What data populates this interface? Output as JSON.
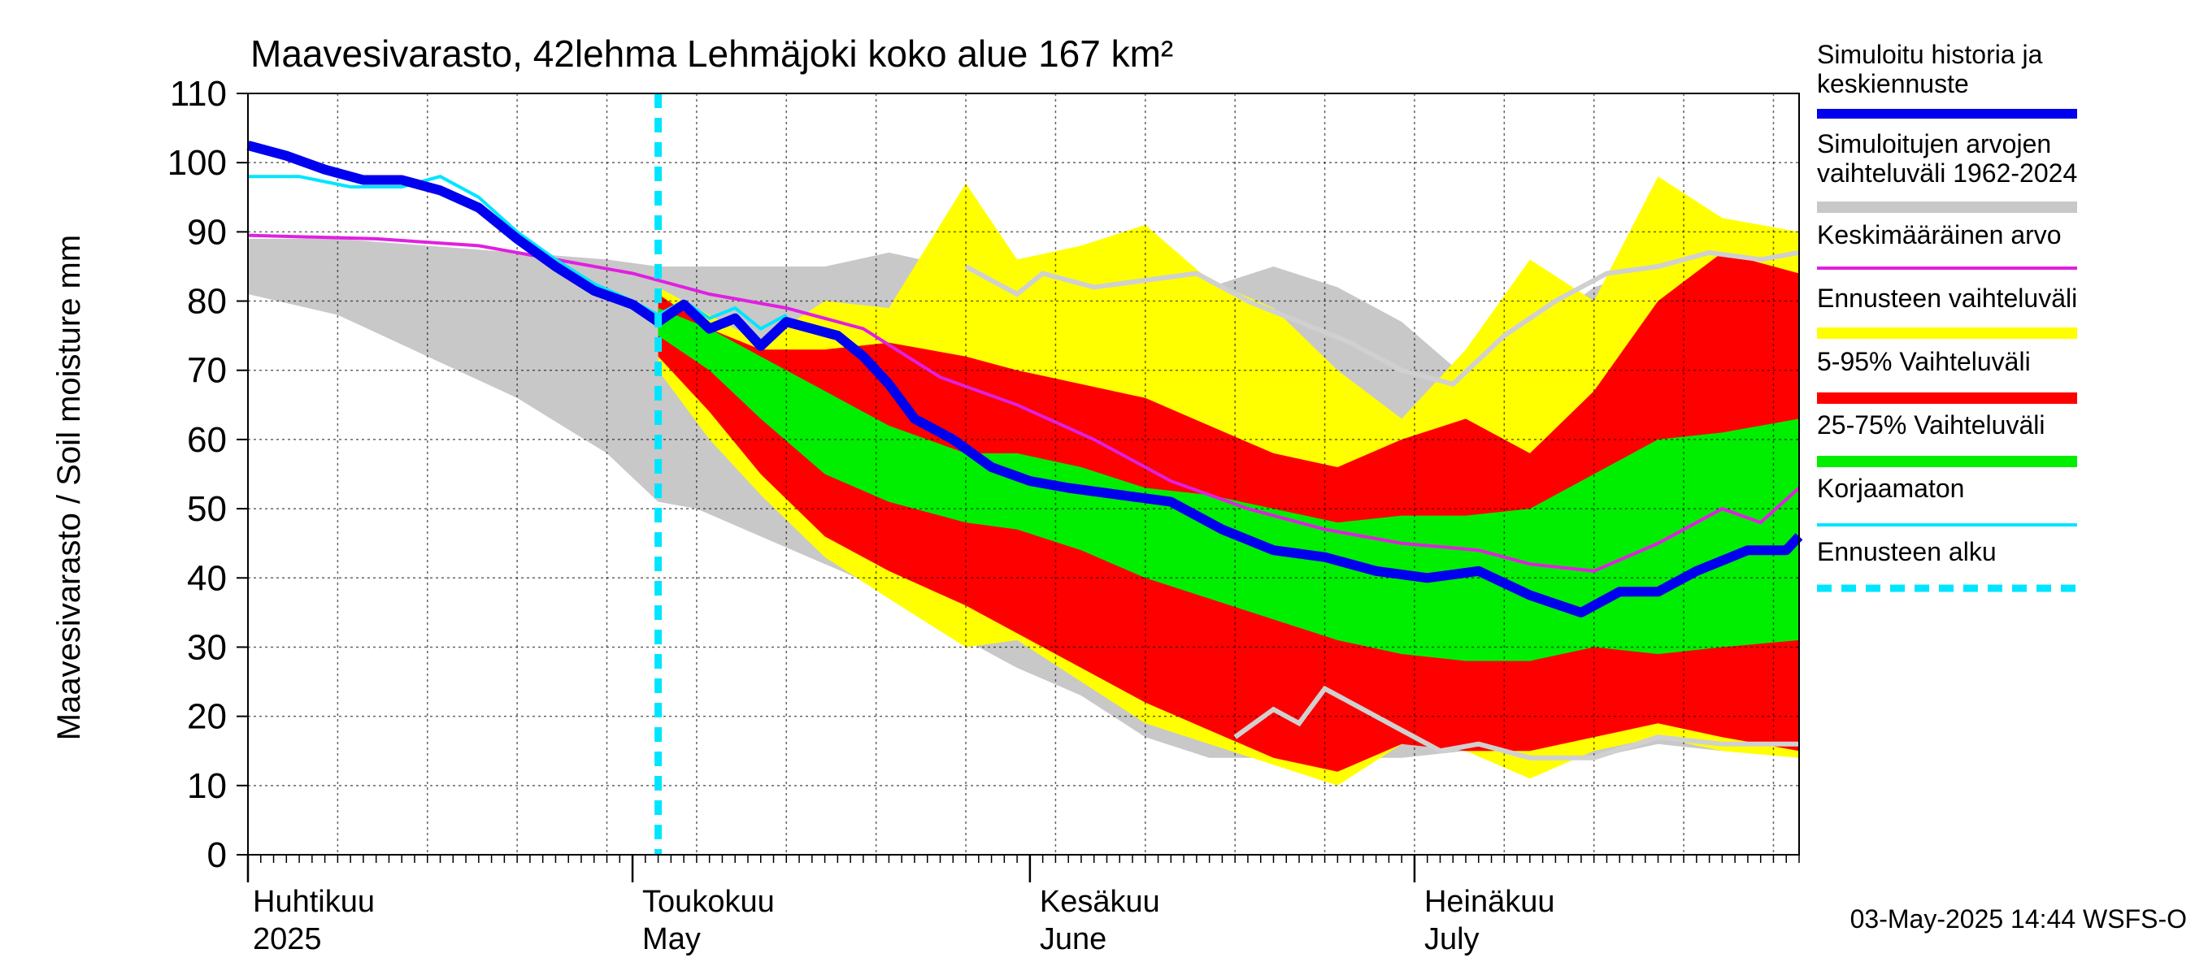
{
  "chart_data": {
    "type": "area",
    "title": "Maavesivarasto, 42lehma Lehmäjoki koko alue 167 km²",
    "ylabel": "Maavesivarasto / Soil moisture   mm",
    "xlabel": "",
    "ylim": [
      0,
      110
    ],
    "yticks": [
      0,
      10,
      20,
      30,
      40,
      50,
      60,
      70,
      80,
      90,
      100,
      110
    ],
    "xlim": [
      "2025-04-01",
      "2025-07-31"
    ],
    "grid": true,
    "legend_position": "right",
    "forecast_start": "2025-05-03",
    "month_labels": [
      {
        "line1": "Huhtikuu",
        "line2": "2025",
        "date": "2025-04-01"
      },
      {
        "line1": "Toukokuu",
        "line2": "May",
        "date": "2025-05-01"
      },
      {
        "line1": "Kesäkuu",
        "line2": "June",
        "date": "2025-06-01"
      },
      {
        "line1": "Heinäkuu",
        "line2": "July",
        "date": "2025-07-01"
      }
    ],
    "footer": "03-May-2025 14:44 WSFS-O",
    "legend": [
      {
        "label": "Simuloitu historia ja keskiennuste",
        "color": "#0000ee",
        "style": "thick"
      },
      {
        "label": "Simuloitujen arvojen vaihteluväli 1962-2024",
        "color": "#c8c8c8",
        "style": "band"
      },
      {
        "label": "Keskimääräinen arvo",
        "color": "#e020e0",
        "style": "thin"
      },
      {
        "label": "Ennusteen vaihteluväli",
        "color": "#ffff00",
        "style": "band"
      },
      {
        "label": "5-95% Vaihteluväli",
        "color": "#ff0000",
        "style": "band"
      },
      {
        "label": "25-75% Vaihteluväli",
        "color": "#00ee00",
        "style": "band"
      },
      {
        "label": "Korjaamaton",
        "color": "#00e5ff",
        "style": "thin"
      },
      {
        "label": "Ennusteen alku",
        "color": "#00e5ff",
        "style": "dashed"
      }
    ],
    "series": {
      "history_range": [
        {
          "d": 0,
          "lo": 81,
          "hi": 89
        },
        {
          "d": 7,
          "lo": 78,
          "hi": 89
        },
        {
          "d": 14,
          "lo": 72,
          "hi": 88
        },
        {
          "d": 21,
          "lo": 66,
          "hi": 87
        },
        {
          "d": 28,
          "lo": 58,
          "hi": 86
        },
        {
          "d": 32,
          "lo": 51,
          "hi": 85
        },
        {
          "d": 35,
          "lo": 50,
          "hi": 85
        },
        {
          "d": 40,
          "lo": 46,
          "hi": 85
        },
        {
          "d": 45,
          "lo": 42,
          "hi": 85
        },
        {
          "d": 50,
          "lo": 38,
          "hi": 87
        },
        {
          "d": 55,
          "lo": 32,
          "hi": 85
        },
        {
          "d": 60,
          "lo": 27,
          "hi": 82
        },
        {
          "d": 65,
          "lo": 23,
          "hi": 84
        },
        {
          "d": 70,
          "lo": 17,
          "hi": 82
        },
        {
          "d": 75,
          "lo": 14,
          "hi": 82
        },
        {
          "d": 80,
          "lo": 14,
          "hi": 85
        },
        {
          "d": 85,
          "lo": 14,
          "hi": 82
        },
        {
          "d": 90,
          "lo": 14,
          "hi": 77
        },
        {
          "d": 95,
          "lo": 15,
          "hi": 69
        },
        {
          "d": 100,
          "lo": 14,
          "hi": 75
        },
        {
          "d": 105,
          "lo": 14,
          "hi": 82
        },
        {
          "d": 110,
          "lo": 16,
          "hi": 85
        },
        {
          "d": 115,
          "lo": 15,
          "hi": 88
        },
        {
          "d": 121,
          "lo": 16,
          "hi": 87
        }
      ],
      "forecast_range": [
        {
          "d": 32,
          "lo": 70,
          "hi": 82
        },
        {
          "d": 36,
          "lo": 60,
          "hi": 78
        },
        {
          "d": 40,
          "lo": 52,
          "hi": 74
        },
        {
          "d": 45,
          "lo": 43,
          "hi": 80
        },
        {
          "d": 50,
          "lo": 37,
          "hi": 79
        },
        {
          "d": 56,
          "lo": 30,
          "hi": 97
        },
        {
          "d": 60,
          "lo": 31,
          "hi": 86
        },
        {
          "d": 65,
          "lo": 25,
          "hi": 88
        },
        {
          "d": 70,
          "lo": 19,
          "hi": 91
        },
        {
          "d": 75,
          "lo": 16,
          "hi": 83
        },
        {
          "d": 80,
          "lo": 13,
          "hi": 79
        },
        {
          "d": 85,
          "lo": 10,
          "hi": 70
        },
        {
          "d": 90,
          "lo": 16,
          "hi": 63
        },
        {
          "d": 95,
          "lo": 15,
          "hi": 73
        },
        {
          "d": 100,
          "lo": 11,
          "hi": 86
        },
        {
          "d": 105,
          "lo": 15,
          "hi": 80
        },
        {
          "d": 110,
          "lo": 17,
          "hi": 98
        },
        {
          "d": 115,
          "lo": 15,
          "hi": 92
        },
        {
          "d": 121,
          "lo": 14,
          "hi": 90
        }
      ],
      "p5_95": [
        {
          "d": 32,
          "lo": 72,
          "hi": 81
        },
        {
          "d": 36,
          "lo": 64,
          "hi": 76
        },
        {
          "d": 40,
          "lo": 55,
          "hi": 73
        },
        {
          "d": 45,
          "lo": 46,
          "hi": 73
        },
        {
          "d": 50,
          "lo": 41,
          "hi": 74
        },
        {
          "d": 56,
          "lo": 36,
          "hi": 72
        },
        {
          "d": 60,
          "lo": 32,
          "hi": 70
        },
        {
          "d": 65,
          "lo": 27,
          "hi": 68
        },
        {
          "d": 70,
          "lo": 22,
          "hi": 66
        },
        {
          "d": 75,
          "lo": 18,
          "hi": 62
        },
        {
          "d": 80,
          "lo": 14,
          "hi": 58
        },
        {
          "d": 85,
          "lo": 12,
          "hi": 56
        },
        {
          "d": 90,
          "lo": 16,
          "hi": 60
        },
        {
          "d": 95,
          "lo": 15,
          "hi": 63
        },
        {
          "d": 100,
          "lo": 15,
          "hi": 58
        },
        {
          "d": 105,
          "lo": 17,
          "hi": 67
        },
        {
          "d": 110,
          "lo": 19,
          "hi": 80
        },
        {
          "d": 115,
          "lo": 17,
          "hi": 87
        },
        {
          "d": 121,
          "lo": 15,
          "hi": 84
        }
      ],
      "p25_75": [
        {
          "d": 32,
          "lo": 75,
          "hi": 79
        },
        {
          "d": 36,
          "lo": 70,
          "hi": 76
        },
        {
          "d": 40,
          "lo": 63,
          "hi": 72
        },
        {
          "d": 45,
          "lo": 55,
          "hi": 67
        },
        {
          "d": 50,
          "lo": 51,
          "hi": 62
        },
        {
          "d": 56,
          "lo": 48,
          "hi": 58
        },
        {
          "d": 60,
          "lo": 47,
          "hi": 58
        },
        {
          "d": 65,
          "lo": 44,
          "hi": 56
        },
        {
          "d": 70,
          "lo": 40,
          "hi": 53
        },
        {
          "d": 75,
          "lo": 37,
          "hi": 52
        },
        {
          "d": 80,
          "lo": 34,
          "hi": 50
        },
        {
          "d": 85,
          "lo": 31,
          "hi": 48
        },
        {
          "d": 90,
          "lo": 29,
          "hi": 49
        },
        {
          "d": 95,
          "lo": 28,
          "hi": 49
        },
        {
          "d": 100,
          "lo": 28,
          "hi": 50
        },
        {
          "d": 105,
          "lo": 30,
          "hi": 55
        },
        {
          "d": 110,
          "lo": 29,
          "hi": 60
        },
        {
          "d": 115,
          "lo": 30,
          "hi": 61
        },
        {
          "d": 121,
          "lo": 31,
          "hi": 63
        }
      ],
      "simulated_history": [
        {
          "d": 0,
          "v": 102.5
        },
        {
          "d": 3,
          "v": 101
        },
        {
          "d": 6,
          "v": 99
        },
        {
          "d": 9,
          "v": 97.5
        },
        {
          "d": 12,
          "v": 97.5
        },
        {
          "d": 15,
          "v": 96
        },
        {
          "d": 18,
          "v": 93.5
        },
        {
          "d": 21,
          "v": 89
        },
        {
          "d": 24,
          "v": 85
        },
        {
          "d": 27,
          "v": 81.5
        },
        {
          "d": 30,
          "v": 79.5
        },
        {
          "d": 32,
          "v": 77
        },
        {
          "d": 34,
          "v": 79.5
        },
        {
          "d": 36,
          "v": 76
        },
        {
          "d": 38,
          "v": 77.5
        },
        {
          "d": 40,
          "v": 73.5
        },
        {
          "d": 42,
          "v": 77
        },
        {
          "d": 44,
          "v": 76
        },
        {
          "d": 46,
          "v": 75
        },
        {
          "d": 48,
          "v": 72
        },
        {
          "d": 50,
          "v": 68
        },
        {
          "d": 52,
          "v": 63
        },
        {
          "d": 55,
          "v": 60
        },
        {
          "d": 58,
          "v": 56
        },
        {
          "d": 61,
          "v": 54
        },
        {
          "d": 64,
          "v": 53
        },
        {
          "d": 68,
          "v": 52
        },
        {
          "d": 72,
          "v": 51
        },
        {
          "d": 76,
          "v": 47
        },
        {
          "d": 80,
          "v": 44
        },
        {
          "d": 84,
          "v": 43
        },
        {
          "d": 88,
          "v": 41
        },
        {
          "d": 92,
          "v": 40
        },
        {
          "d": 96,
          "v": 41
        },
        {
          "d": 100,
          "v": 37.5
        },
        {
          "d": 104,
          "v": 35
        },
        {
          "d": 107,
          "v": 38
        },
        {
          "d": 110,
          "v": 38
        },
        {
          "d": 113,
          "v": 41
        },
        {
          "d": 117,
          "v": 44
        },
        {
          "d": 120,
          "v": 44
        },
        {
          "d": 121,
          "v": 46
        }
      ],
      "mean_value": [
        {
          "d": 0,
          "v": 89.5
        },
        {
          "d": 10,
          "v": 89
        },
        {
          "d": 18,
          "v": 88
        },
        {
          "d": 24,
          "v": 86
        },
        {
          "d": 30,
          "v": 84
        },
        {
          "d": 36,
          "v": 81
        },
        {
          "d": 42,
          "v": 79
        },
        {
          "d": 48,
          "v": 76
        },
        {
          "d": 54,
          "v": 69
        },
        {
          "d": 60,
          "v": 65
        },
        {
          "d": 66,
          "v": 60
        },
        {
          "d": 72,
          "v": 54
        },
        {
          "d": 78,
          "v": 50
        },
        {
          "d": 84,
          "v": 47
        },
        {
          "d": 90,
          "v": 45
        },
        {
          "d": 96,
          "v": 44
        },
        {
          "d": 100,
          "v": 42
        },
        {
          "d": 105,
          "v": 41
        },
        {
          "d": 110,
          "v": 45
        },
        {
          "d": 115,
          "v": 50
        },
        {
          "d": 118,
          "v": 48
        },
        {
          "d": 121,
          "v": 53
        }
      ],
      "uncorrected": [
        {
          "d": 0,
          "v": 98
        },
        {
          "d": 4,
          "v": 98
        },
        {
          "d": 8,
          "v": 96.5
        },
        {
          "d": 12,
          "v": 96.5
        },
        {
          "d": 15,
          "v": 98
        },
        {
          "d": 18,
          "v": 95
        },
        {
          "d": 21,
          "v": 90
        },
        {
          "d": 24,
          "v": 86
        },
        {
          "d": 27,
          "v": 82.5
        },
        {
          "d": 30,
          "v": 80
        },
        {
          "d": 32,
          "v": 78
        },
        {
          "d": 34,
          "v": 80
        },
        {
          "d": 36,
          "v": 77.5
        },
        {
          "d": 38,
          "v": 79
        },
        {
          "d": 40,
          "v": 76
        },
        {
          "d": 42,
          "v": 78
        }
      ],
      "history_min_line": [
        {
          "d": 77,
          "v": 17
        },
        {
          "d": 80,
          "v": 21
        },
        {
          "d": 82,
          "v": 19
        },
        {
          "d": 84,
          "v": 24
        },
        {
          "d": 86,
          "v": 22
        },
        {
          "d": 89,
          "v": 19
        },
        {
          "d": 91,
          "v": 17
        },
        {
          "d": 93,
          "v": 15
        },
        {
          "d": 96,
          "v": 16
        },
        {
          "d": 100,
          "v": 14
        },
        {
          "d": 105,
          "v": 14
        },
        {
          "d": 110,
          "v": 17
        },
        {
          "d": 115,
          "v": 16
        },
        {
          "d": 121,
          "v": 16
        }
      ],
      "history_max_line": [
        {
          "d": 56,
          "v": 85
        },
        {
          "d": 60,
          "v": 81
        },
        {
          "d": 62,
          "v": 84
        },
        {
          "d": 66,
          "v": 82
        },
        {
          "d": 70,
          "v": 83
        },
        {
          "d": 74,
          "v": 84
        },
        {
          "d": 78,
          "v": 80
        },
        {
          "d": 82,
          "v": 77
        },
        {
          "d": 86,
          "v": 74
        },
        {
          "d": 90,
          "v": 70
        },
        {
          "d": 94,
          "v": 68
        },
        {
          "d": 98,
          "v": 75
        },
        {
          "d": 102,
          "v": 80
        },
        {
          "d": 106,
          "v": 84
        },
        {
          "d": 110,
          "v": 85
        },
        {
          "d": 114,
          "v": 87
        },
        {
          "d": 118,
          "v": 86
        },
        {
          "d": 121,
          "v": 87
        }
      ]
    }
  }
}
